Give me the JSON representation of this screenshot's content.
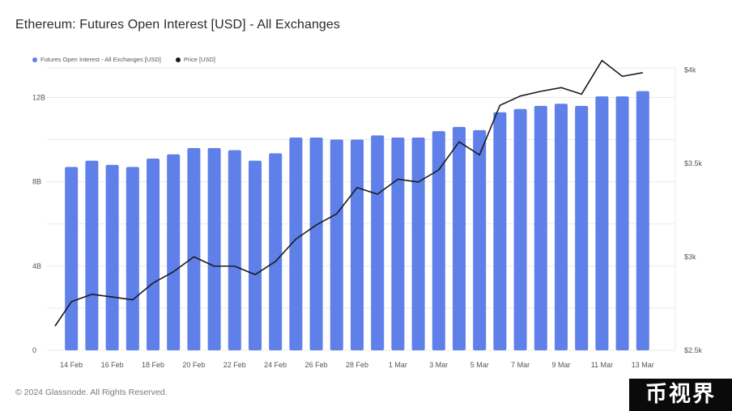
{
  "title": "Ethereum: Futures Open Interest [USD] - All Exchanges",
  "footer": "© 2024 Glassnode. All Rights Reserved.",
  "watermark": "币视界",
  "colors": {
    "bar": "#5f7fe9",
    "price_line": "#1a1a1a",
    "grid": "#e9e9e9"
  },
  "chart_data": {
    "type": "bar",
    "legend": [
      {
        "name": "Futures Open Interest - All Exchanges [USD]",
        "color": "#5f7fe9"
      },
      {
        "name": "Price [USD]",
        "color": "#1a1a1a"
      }
    ],
    "legend_position": "top-left",
    "grid": true,
    "x_tick_labels": [
      "14 Feb",
      "16 Feb",
      "18 Feb",
      "20 Feb",
      "22 Feb",
      "24 Feb",
      "26 Feb",
      "28 Feb",
      "1 Mar",
      "3 Mar",
      "5 Mar",
      "7 Mar",
      "9 Mar",
      "11 Mar",
      "13 Mar"
    ],
    "y_left": {
      "ticks": [
        0,
        4,
        8,
        12
      ],
      "tick_labels": [
        "0",
        "4B",
        "8B",
        "12B"
      ],
      "range": [
        0,
        13.4
      ],
      "unit": "B USD"
    },
    "y_right": {
      "ticks": [
        2500,
        3000,
        3500,
        4000
      ],
      "tick_labels": [
        "$2.5k",
        "$3k",
        "$3.5k",
        "$4k"
      ],
      "range": [
        2500,
        4010
      ]
    },
    "dates": [
      "13 Feb",
      "14 Feb",
      "15 Feb",
      "16 Feb",
      "17 Feb",
      "18 Feb",
      "19 Feb",
      "20 Feb",
      "21 Feb",
      "22 Feb",
      "23 Feb",
      "24 Feb",
      "25 Feb",
      "26 Feb",
      "27 Feb",
      "28 Feb",
      "29 Feb",
      "1 Mar",
      "2 Mar",
      "3 Mar",
      "4 Mar",
      "5 Mar",
      "6 Mar",
      "7 Mar",
      "8 Mar",
      "9 Mar",
      "10 Mar",
      "11 Mar",
      "12 Mar",
      "13 Mar",
      "14 Mar"
    ],
    "series": [
      {
        "name": "Futures Open Interest - All Exchanges [USD]",
        "type": "bar",
        "axis": "left",
        "values": [
          null,
          8.7,
          9.0,
          8.8,
          8.7,
          9.1,
          9.3,
          9.6,
          9.6,
          9.5,
          9.0,
          9.35,
          10.1,
          10.1,
          10.0,
          10.0,
          10.2,
          10.1,
          10.1,
          10.4,
          10.6,
          10.45,
          11.3,
          11.45,
          11.6,
          11.7,
          11.6,
          12.05,
          12.05,
          12.3,
          null
        ]
      },
      {
        "name": "Price [USD]",
        "type": "line",
        "axis": "right",
        "values": [
          2630,
          2760,
          2800,
          2785,
          2770,
          2860,
          2920,
          3000,
          2950,
          2950,
          2905,
          2975,
          3095,
          3170,
          3230,
          3370,
          3335,
          3415,
          3400,
          3465,
          3615,
          3545,
          3810,
          3860,
          3885,
          3905,
          3870,
          4050,
          3965,
          3985,
          null
        ]
      }
    ]
  }
}
